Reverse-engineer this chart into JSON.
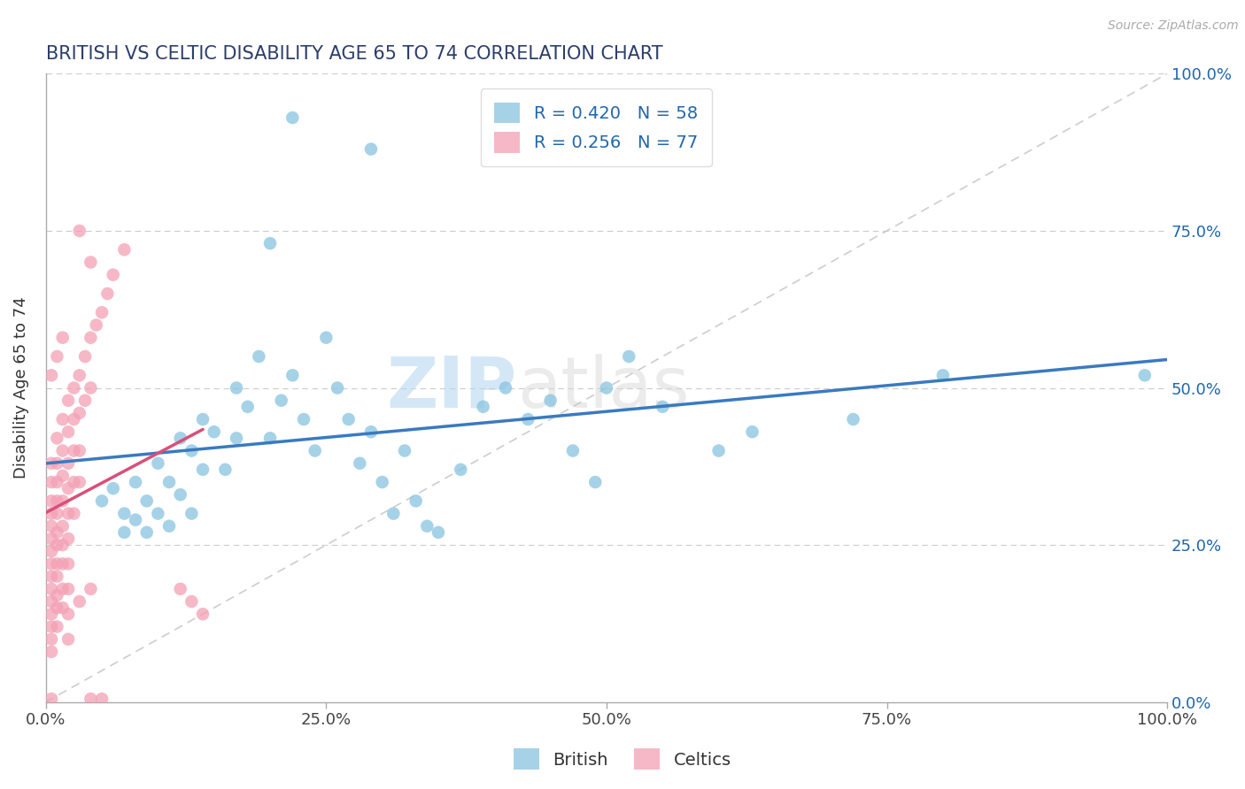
{
  "title": "BRITISH VS CELTIC DISABILITY AGE 65 TO 74 CORRELATION CHART",
  "ylabel": "Disability Age 65 to 74",
  "source_text": "Source: ZipAtlas.com",
  "xlim": [
    0,
    1
  ],
  "ylim": [
    0,
    1
  ],
  "xtick_labels": [
    "0.0%",
    "25.0%",
    "50.0%",
    "75.0%",
    "100.0%"
  ],
  "xtick_values": [
    0,
    0.25,
    0.5,
    0.75,
    1.0
  ],
  "ytick_labels": [
    "0.0%",
    "25.0%",
    "50.0%",
    "75.0%",
    "100.0%"
  ],
  "ytick_values": [
    0,
    0.25,
    0.5,
    0.75,
    1.0
  ],
  "british_color": "#89c4e1",
  "celtic_color": "#f4a0b5",
  "british_R": 0.42,
  "british_N": 58,
  "celtic_R": 0.256,
  "celtic_N": 77,
  "british_line_color": "#3a7abf",
  "celtic_line_color": "#d94f7a",
  "diagonal_color": "#c8c8c8",
  "background_color": "#ffffff",
  "title_color": "#2c3e6b",
  "source_color": "#aaaaaa",
  "legend_R_color": "#2166ac",
  "british_scatter": [
    [
      0.05,
      0.32
    ],
    [
      0.06,
      0.34
    ],
    [
      0.07,
      0.3
    ],
    [
      0.07,
      0.27
    ],
    [
      0.08,
      0.35
    ],
    [
      0.08,
      0.29
    ],
    [
      0.09,
      0.32
    ],
    [
      0.09,
      0.27
    ],
    [
      0.1,
      0.38
    ],
    [
      0.1,
      0.3
    ],
    [
      0.11,
      0.35
    ],
    [
      0.11,
      0.28
    ],
    [
      0.12,
      0.42
    ],
    [
      0.12,
      0.33
    ],
    [
      0.13,
      0.4
    ],
    [
      0.13,
      0.3
    ],
    [
      0.14,
      0.45
    ],
    [
      0.14,
      0.37
    ],
    [
      0.15,
      0.43
    ],
    [
      0.16,
      0.37
    ],
    [
      0.17,
      0.5
    ],
    [
      0.17,
      0.42
    ],
    [
      0.18,
      0.47
    ],
    [
      0.19,
      0.55
    ],
    [
      0.2,
      0.42
    ],
    [
      0.21,
      0.48
    ],
    [
      0.22,
      0.52
    ],
    [
      0.23,
      0.45
    ],
    [
      0.24,
      0.4
    ],
    [
      0.25,
      0.58
    ],
    [
      0.26,
      0.5
    ],
    [
      0.27,
      0.45
    ],
    [
      0.28,
      0.38
    ],
    [
      0.29,
      0.43
    ],
    [
      0.3,
      0.35
    ],
    [
      0.31,
      0.3
    ],
    [
      0.32,
      0.4
    ],
    [
      0.33,
      0.32
    ],
    [
      0.34,
      0.28
    ],
    [
      0.35,
      0.27
    ],
    [
      0.37,
      0.37
    ],
    [
      0.39,
      0.47
    ],
    [
      0.41,
      0.5
    ],
    [
      0.43,
      0.45
    ],
    [
      0.45,
      0.48
    ],
    [
      0.47,
      0.4
    ],
    [
      0.49,
      0.35
    ],
    [
      0.5,
      0.5
    ],
    [
      0.52,
      0.55
    ],
    [
      0.55,
      0.47
    ],
    [
      0.6,
      0.4
    ],
    [
      0.63,
      0.43
    ],
    [
      0.72,
      0.45
    ],
    [
      0.8,
      0.52
    ],
    [
      0.98,
      0.52
    ],
    [
      0.22,
      0.93
    ],
    [
      0.29,
      0.88
    ],
    [
      0.2,
      0.73
    ]
  ],
  "celtic_scatter": [
    [
      0.005,
      0.38
    ],
    [
      0.005,
      0.35
    ],
    [
      0.005,
      0.32
    ],
    [
      0.005,
      0.3
    ],
    [
      0.005,
      0.28
    ],
    [
      0.005,
      0.26
    ],
    [
      0.005,
      0.24
    ],
    [
      0.005,
      0.22
    ],
    [
      0.005,
      0.2
    ],
    [
      0.005,
      0.18
    ],
    [
      0.005,
      0.16
    ],
    [
      0.005,
      0.14
    ],
    [
      0.005,
      0.12
    ],
    [
      0.005,
      0.1
    ],
    [
      0.005,
      0.08
    ],
    [
      0.005,
      0.005
    ],
    [
      0.01,
      0.42
    ],
    [
      0.01,
      0.38
    ],
    [
      0.01,
      0.35
    ],
    [
      0.01,
      0.32
    ],
    [
      0.01,
      0.3
    ],
    [
      0.01,
      0.27
    ],
    [
      0.01,
      0.25
    ],
    [
      0.01,
      0.22
    ],
    [
      0.01,
      0.2
    ],
    [
      0.01,
      0.17
    ],
    [
      0.01,
      0.15
    ],
    [
      0.01,
      0.12
    ],
    [
      0.015,
      0.45
    ],
    [
      0.015,
      0.4
    ],
    [
      0.015,
      0.36
    ],
    [
      0.015,
      0.32
    ],
    [
      0.015,
      0.28
    ],
    [
      0.015,
      0.25
    ],
    [
      0.015,
      0.22
    ],
    [
      0.015,
      0.18
    ],
    [
      0.015,
      0.15
    ],
    [
      0.02,
      0.48
    ],
    [
      0.02,
      0.43
    ],
    [
      0.02,
      0.38
    ],
    [
      0.02,
      0.34
    ],
    [
      0.02,
      0.3
    ],
    [
      0.02,
      0.26
    ],
    [
      0.02,
      0.22
    ],
    [
      0.02,
      0.18
    ],
    [
      0.025,
      0.5
    ],
    [
      0.025,
      0.45
    ],
    [
      0.025,
      0.4
    ],
    [
      0.025,
      0.35
    ],
    [
      0.025,
      0.3
    ],
    [
      0.03,
      0.52
    ],
    [
      0.03,
      0.46
    ],
    [
      0.03,
      0.4
    ],
    [
      0.03,
      0.35
    ],
    [
      0.035,
      0.55
    ],
    [
      0.035,
      0.48
    ],
    [
      0.04,
      0.58
    ],
    [
      0.04,
      0.5
    ],
    [
      0.045,
      0.6
    ],
    [
      0.05,
      0.62
    ],
    [
      0.055,
      0.65
    ],
    [
      0.06,
      0.68
    ],
    [
      0.07,
      0.72
    ],
    [
      0.03,
      0.75
    ],
    [
      0.04,
      0.7
    ],
    [
      0.02,
      0.14
    ],
    [
      0.02,
      0.1
    ],
    [
      0.03,
      0.16
    ],
    [
      0.04,
      0.18
    ],
    [
      0.005,
      0.52
    ],
    [
      0.01,
      0.55
    ],
    [
      0.015,
      0.58
    ],
    [
      0.04,
      0.005
    ],
    [
      0.05,
      0.005
    ],
    [
      0.12,
      0.18
    ],
    [
      0.13,
      0.16
    ],
    [
      0.14,
      0.14
    ]
  ]
}
